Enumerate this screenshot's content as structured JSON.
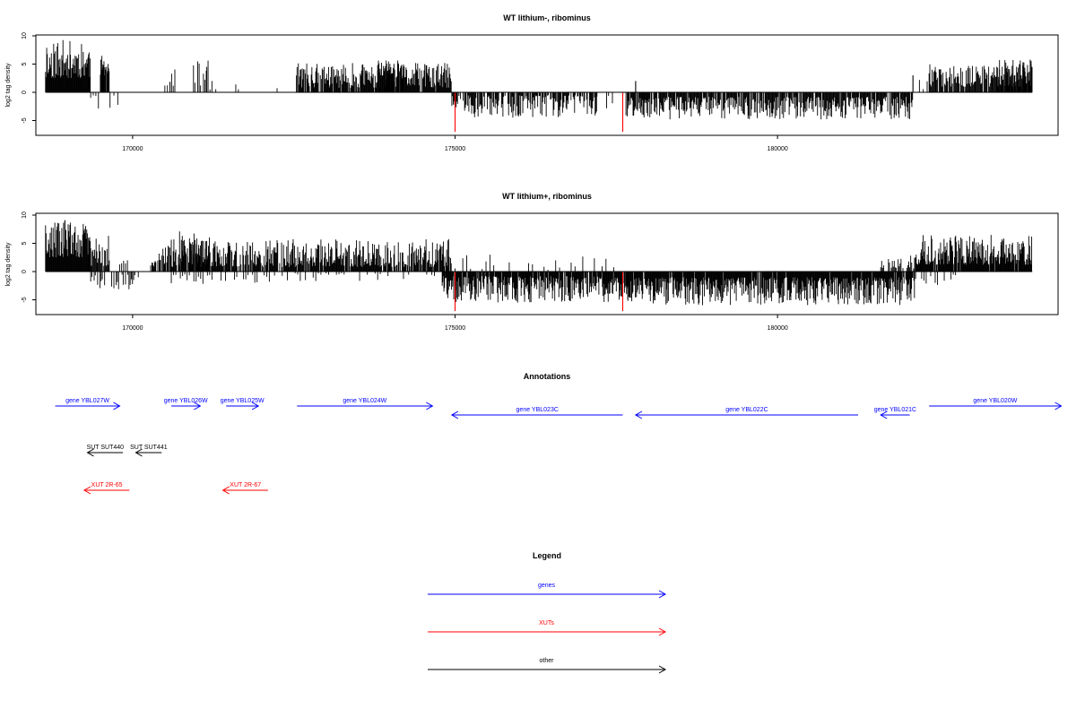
{
  "chart_data": [
    {
      "type": "bar",
      "title": "WT lithium-, ribominus",
      "ylabel": "log2 tag density",
      "xlim": [
        168500,
        184350
      ],
      "ylim": [
        -7,
        10
      ],
      "x_ticks": [
        170000,
        175000,
        180000
      ],
      "y_ticks": [
        -5,
        0,
        5,
        10
      ],
      "seed": 11,
      "segments": [
        {
          "from": 168650,
          "to": 169350,
          "sign": 1,
          "min": 2.5,
          "max": 9.3,
          "step": 9,
          "gapProb": 0.02
        },
        {
          "from": 169350,
          "to": 169500,
          "sign": -1,
          "min": 0.5,
          "max": 3,
          "step": 40,
          "gapProb": 0.3
        },
        {
          "from": 169500,
          "to": 169640,
          "sign": 1,
          "min": 3,
          "max": 6.5,
          "step": 8,
          "gapProb": 0.05
        },
        {
          "from": 169650,
          "to": 170000,
          "sign": -1,
          "min": 0.3,
          "max": 2.8,
          "step": 60,
          "gapProb": 0.6
        },
        {
          "from": 170500,
          "to": 170600,
          "sign": 1,
          "min": 0.5,
          "max": 2,
          "step": 40,
          "gapProb": 0.4
        },
        {
          "from": 170580,
          "to": 170680,
          "sign": 1,
          "min": 1,
          "max": 4.3,
          "step": 25,
          "gapProb": 0.3
        },
        {
          "from": 170900,
          "to": 171150,
          "sign": 1,
          "min": 0.5,
          "max": 5.5,
          "step": 22,
          "gapProb": 0.35
        },
        {
          "from": 171150,
          "to": 171200,
          "sign": 1,
          "min": 4,
          "max": 7,
          "step": 20,
          "gapProb": 0.3
        },
        {
          "from": 171200,
          "to": 171300,
          "sign": 1,
          "min": 0.5,
          "max": 2.5,
          "step": 30,
          "gapProb": 0.5
        },
        {
          "from": 171600,
          "to": 171700,
          "sign": 1,
          "min": 0.5,
          "max": 2,
          "step": 40,
          "gapProb": 0.5
        },
        {
          "from": 172200,
          "to": 172300,
          "sign": 1,
          "min": 0.5,
          "max": 2,
          "step": 40,
          "gapProb": 0.5
        },
        {
          "from": 172540,
          "to": 174950,
          "sign": 1,
          "min": 0.8,
          "max": 5.2,
          "step": 10,
          "gapProb": 0.12
        },
        {
          "from": 173800,
          "to": 174200,
          "sign": 1,
          "min": 2.5,
          "max": 6.3,
          "step": 12,
          "gapProb": 0.15
        },
        {
          "from": 174950,
          "to": 177200,
          "sign": -1,
          "min": 0.5,
          "max": 4.5,
          "step": 11,
          "gapProb": 0.25
        },
        {
          "from": 177200,
          "to": 177450,
          "sign": -1,
          "min": 0.5,
          "max": 3,
          "step": 30,
          "gapProb": 0.5
        },
        {
          "from": 177650,
          "to": 178200,
          "sign": -1,
          "min": 1,
          "max": 4.5,
          "step": 10,
          "gapProb": 0.1
        },
        {
          "from": 178200,
          "to": 182100,
          "sign": -1,
          "min": 0.8,
          "max": 4.8,
          "step": 11,
          "gapProb": 0.12
        },
        {
          "from": 182200,
          "to": 182400,
          "sign": 1,
          "min": 0.5,
          "max": 2.5,
          "step": 60,
          "gapProb": 0.5
        },
        {
          "from": 182350,
          "to": 183950,
          "sign": 1,
          "min": 1,
          "max": 5,
          "step": 12,
          "gapProb": 0.08
        },
        {
          "from": 183400,
          "to": 183950,
          "sign": 1,
          "min": 2,
          "max": 5.8,
          "step": 14,
          "gapProb": 0.1
        }
      ],
      "spikes": [
        {
          "x": 175000,
          "value": -7,
          "color": "#ff0000"
        },
        {
          "x": 177600,
          "value": -7,
          "color": "#ff0000"
        },
        {
          "x": 177800,
          "value": 2,
          "color": "#000000"
        },
        {
          "x": 182100,
          "value": 3,
          "color": "#000000"
        }
      ]
    },
    {
      "type": "bar",
      "title": "WT lithium+, ribominus",
      "ylabel": "log2 tag density",
      "xlim": [
        168500,
        184350
      ],
      "ylim": [
        -7,
        10
      ],
      "x_ticks": [
        170000,
        175000,
        180000
      ],
      "y_ticks": [
        -5,
        0,
        5,
        10
      ],
      "seed": 29,
      "segments": [
        {
          "from": 168650,
          "to": 169350,
          "sign": 1,
          "min": 2.5,
          "max": 9,
          "step": 9,
          "gapProb": 0.02
        },
        {
          "from": 169350,
          "to": 169650,
          "sign": 1,
          "min": 1,
          "max": 6.5,
          "step": 12,
          "gapProb": 0.1
        },
        {
          "from": 169350,
          "to": 170100,
          "sign": -1,
          "min": 0.5,
          "max": 3.2,
          "step": 18,
          "gapProb": 0.35
        },
        {
          "from": 169800,
          "to": 170300,
          "sign": 1,
          "min": 0.5,
          "max": 2.5,
          "step": 30,
          "gapProb": 0.5
        },
        {
          "from": 170300,
          "to": 174950,
          "sign": 1,
          "min": 0.8,
          "max": 5.8,
          "step": 10,
          "gapProb": 0.12
        },
        {
          "from": 170700,
          "to": 171200,
          "sign": 1,
          "min": 2,
          "max": 7.5,
          "step": 14,
          "gapProb": 0.2
        },
        {
          "from": 170600,
          "to": 172000,
          "sign": -1,
          "min": 0.5,
          "max": 2.2,
          "step": 35,
          "gapProb": 0.5
        },
        {
          "from": 172000,
          "to": 174900,
          "sign": -1,
          "min": 0.3,
          "max": 1.8,
          "step": 40,
          "gapProb": 0.6
        },
        {
          "from": 174800,
          "to": 177700,
          "sign": -1,
          "min": 0.8,
          "max": 5.5,
          "step": 9,
          "gapProb": 0.12
        },
        {
          "from": 175000,
          "to": 177500,
          "sign": 1,
          "min": 0.3,
          "max": 3,
          "step": 60,
          "gapProb": 0.55
        },
        {
          "from": 177650,
          "to": 182150,
          "sign": -1,
          "min": 1,
          "max": 6,
          "step": 9,
          "gapProb": 0.06
        },
        {
          "from": 181600,
          "to": 182150,
          "sign": 1,
          "min": 0.5,
          "max": 3,
          "step": 15,
          "gapProb": 0.3
        },
        {
          "from": 182150,
          "to": 183950,
          "sign": 1,
          "min": 1.2,
          "max": 6.5,
          "step": 9,
          "gapProb": 0.05
        },
        {
          "from": 182200,
          "to": 182800,
          "sign": -1,
          "min": 0.5,
          "max": 2.5,
          "step": 35,
          "gapProb": 0.5
        }
      ],
      "spikes": [
        {
          "x": 175000,
          "value": -7,
          "color": "#ff0000"
        },
        {
          "x": 177600,
          "value": -7,
          "color": "#ff0000"
        },
        {
          "x": 168950,
          "value": 9.1,
          "color": "#000000"
        }
      ]
    }
  ],
  "annotations": {
    "title": "Annotations",
    "features": [
      {
        "label": "gene YBL027W",
        "start": 168800,
        "end": 169800,
        "row": 0,
        "color": "#0000ff",
        "strand": "+"
      },
      {
        "label": "gene YBL026W",
        "start": 170600,
        "end": 171050,
        "row": 0,
        "color": "#0000ff",
        "strand": "+"
      },
      {
        "label": "gene YBL025W",
        "start": 171450,
        "end": 171950,
        "row": 0,
        "color": "#0000ff",
        "strand": "+"
      },
      {
        "label": "gene YBL024W",
        "start": 172550,
        "end": 174650,
        "row": 0,
        "color": "#0000ff",
        "strand": "+"
      },
      {
        "label": "gene YBL023C",
        "start": 174950,
        "end": 177600,
        "row": 1,
        "color": "#0000ff",
        "strand": "-"
      },
      {
        "label": "gene YBL022C",
        "start": 177800,
        "end": 181250,
        "row": 1,
        "color": "#0000ff",
        "strand": "-"
      },
      {
        "label": "gene YBL021C",
        "start": 181600,
        "end": 182050,
        "row": 1,
        "color": "#0000ff",
        "strand": "-"
      },
      {
        "label": "gene YBL020W",
        "start": 182350,
        "end": 184400,
        "row": 0,
        "color": "#0000ff",
        "strand": "+"
      },
      {
        "label": "SUT SUT440",
        "start": 169300,
        "end": 169850,
        "row": 2,
        "color": "#000000",
        "strand": "-"
      },
      {
        "label": "SUT SUT441",
        "start": 170050,
        "end": 170450,
        "row": 2,
        "color": "#000000",
        "strand": "-"
      },
      {
        "label": "XUT 2R-65",
        "start": 169250,
        "end": 169950,
        "row": 3,
        "color": "#ff0000",
        "strand": "-"
      },
      {
        "label": "XUT 2R-67",
        "start": 171400,
        "end": 172100,
        "row": 3,
        "color": "#ff0000",
        "strand": "-"
      }
    ]
  },
  "legend": {
    "title": "Legend",
    "items": [
      {
        "label": "genes",
        "color": "#0000ff"
      },
      {
        "label": "XUTs",
        "color": "#ff0000"
      },
      {
        "label": "other",
        "color": "#000000"
      }
    ]
  }
}
